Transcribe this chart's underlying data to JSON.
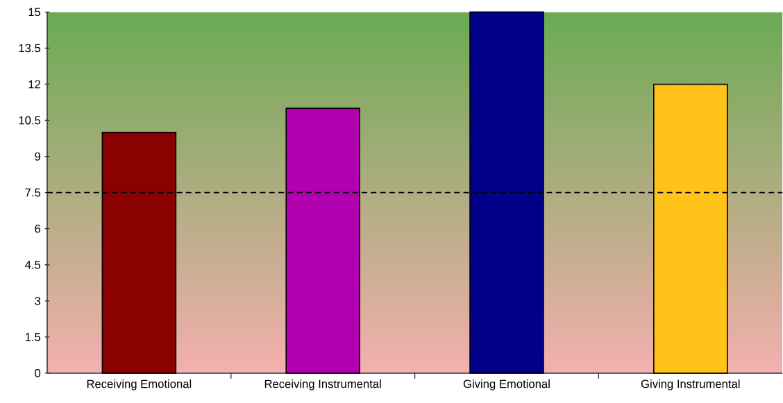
{
  "chart_data": {
    "type": "bar",
    "categories": [
      "Receiving Emotional",
      "Receiving Instrumental",
      "Giving Emotional",
      "Giving Instrumental"
    ],
    "values": [
      10,
      11,
      15,
      12
    ],
    "colors": [
      "#8b0000",
      "#b000b0",
      "#000088",
      "#ffc31a"
    ],
    "ylim": [
      0,
      15
    ],
    "yticks": [
      0,
      1.5,
      3,
      4.5,
      6,
      7.5,
      9,
      10.5,
      12,
      13.5,
      15
    ],
    "ref_lines": [
      {
        "axis": "y",
        "value": 7.5,
        "line_style": "dashed"
      }
    ],
    "grid": false
  }
}
